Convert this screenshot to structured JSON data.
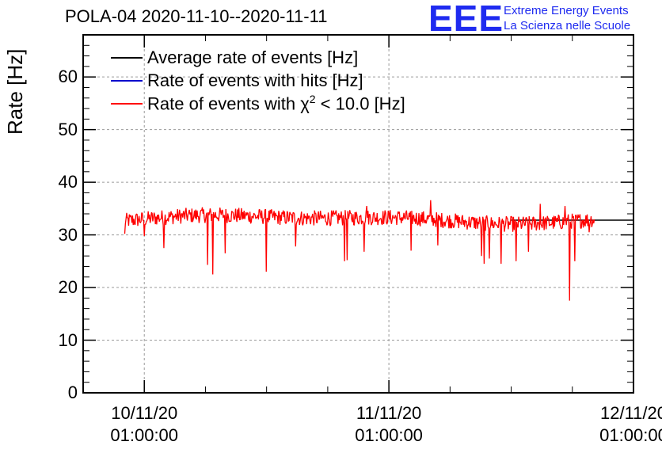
{
  "header": {
    "title": "POLA-04 2020-11-10--2020-11-11",
    "logo_mark": "EEE",
    "logo_line1": "Extreme Energy Events",
    "logo_line2": "La Scienza nelle Scuole"
  },
  "colors": {
    "average": "#000000",
    "hits": "#0000cc",
    "chi2": "#ff0000",
    "logo": "#1f2bf0",
    "grid": "#9a9a9a"
  },
  "chart_data": {
    "type": "line",
    "title": "POLA-04 2020-11-10--2020-11-11",
    "ylabel": "Rate [Hz]",
    "xlabel": "",
    "ylim": [
      0,
      68
    ],
    "yticks": [
      0,
      10,
      20,
      30,
      40,
      50,
      60
    ],
    "xticks": [
      {
        "line1": "10/11/20",
        "line2": "01:00:00",
        "t": 0
      },
      {
        "line1": "11/11/20",
        "line2": "01:00:00",
        "t": 1
      },
      {
        "line1": "12/11/20",
        "line2": "01:00:00",
        "t": 2
      }
    ],
    "xlim_days": [
      -0.25,
      2.0
    ],
    "grid": true,
    "legend_position": "top-left",
    "series": [
      {
        "name": "Average rate of events [Hz]",
        "color": "#000000",
        "points": [
          [
            1.5,
            32.8
          ],
          [
            2.0,
            32.8
          ]
        ]
      },
      {
        "name": "Rate of events with hits [Hz]",
        "color": "#0000cc",
        "points": []
      },
      {
        "name": "Rate of events with χ² < 10.0 [Hz]",
        "color": "#ff0000",
        "start_day": -0.08,
        "end_day": 1.84,
        "baseline": 33.0,
        "band": 1.5,
        "dips": [
          [
            -0.08,
            30.2
          ],
          [
            0.0,
            29.8
          ],
          [
            0.08,
            27.5
          ],
          [
            0.26,
            24.3
          ],
          [
            0.28,
            22.5
          ],
          [
            0.33,
            26.5
          ],
          [
            0.5,
            23.0
          ],
          [
            0.62,
            27.8
          ],
          [
            0.82,
            25.0
          ],
          [
            0.83,
            25.2
          ],
          [
            0.9,
            26.8
          ],
          [
            1.09,
            27.0
          ],
          [
            1.2,
            28.0
          ],
          [
            1.38,
            26.0
          ],
          [
            1.39,
            24.5
          ],
          [
            1.41,
            25.5
          ],
          [
            1.46,
            24.5
          ],
          [
            1.52,
            25.0
          ],
          [
            1.57,
            26.8
          ],
          [
            1.74,
            17.5
          ],
          [
            1.76,
            25.0
          ],
          [
            1.82,
            30.5
          ]
        ],
        "peaks": [
          [
            0.91,
            35.5
          ],
          [
            1.17,
            36.6
          ],
          [
            1.62,
            35.9
          ],
          [
            1.72,
            35.5
          ]
        ]
      }
    ]
  }
}
